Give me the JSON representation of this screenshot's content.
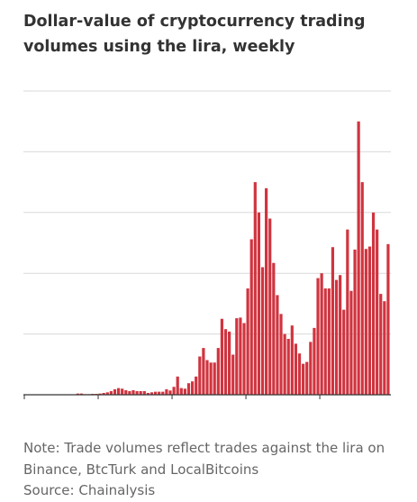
{
  "chart_data": {
    "type": "bar",
    "title": "Dollar-value of cryptocurrency trading volumes using the lira, weekly",
    "xlabel": "",
    "ylabel": "",
    "grid": true,
    "legend": "none",
    "ylim": [
      0,
      100
    ],
    "yticks": [
      0,
      20,
      40,
      60,
      80,
      100
    ],
    "bar_color": "#d0343f",
    "x_tick_every": 20,
    "values": [
      0,
      0,
      0,
      0,
      0,
      0,
      0,
      0,
      0,
      0,
      0,
      0,
      0,
      0,
      0.4,
      0.4,
      0.2,
      0.2,
      0.3,
      0.3,
      0.4,
      0.6,
      0.8,
      1.2,
      1.8,
      2.2,
      2.0,
      1.5,
      1.2,
      1.5,
      1.2,
      1.2,
      1.2,
      0.6,
      0.8,
      1.0,
      1.0,
      1.0,
      1.8,
      1.4,
      2.6,
      6.0,
      2.2,
      2.0,
      3.8,
      4.4,
      6.0,
      12.6,
      15.4,
      11.4,
      10.6,
      10.6,
      15.4,
      25.0,
      21.6,
      20.8,
      13.2,
      25.2,
      25.4,
      23.6,
      35.0,
      51.2,
      70.0,
      60.0,
      42.0,
      68.0,
      58.0,
      43.4,
      32.8,
      26.6,
      20.0,
      18.4,
      22.8,
      16.8,
      13.6,
      10.2,
      10.8,
      17.4,
      22.0,
      38.4,
      40.0,
      35.0,
      35.0,
      48.6,
      37.8,
      39.4,
      28.0,
      54.4,
      34.2,
      47.8,
      90.0,
      70.0,
      48.0,
      48.8,
      60.0,
      54.4,
      33.2,
      30.8,
      49.6
    ]
  },
  "notes": {
    "note_line1": "Note: Trade volumes reflect trades against the lira on",
    "note_line2": "Binance, BtcTurk and LocalBitcoins",
    "source": "Source: Chainalysis"
  },
  "colors": {
    "bar": "#d0343f",
    "grid": "#d9d9d9",
    "axis": "#333333",
    "title": "#333333",
    "note": "#666666"
  }
}
